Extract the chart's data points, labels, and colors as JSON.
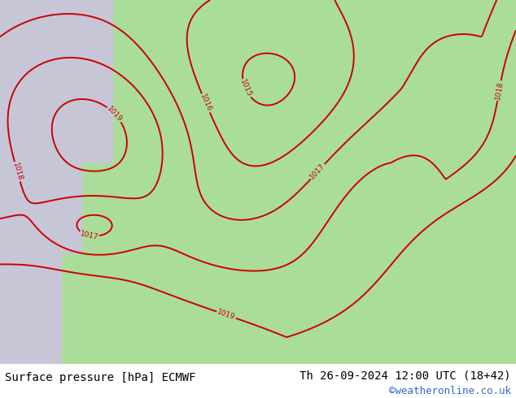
{
  "title_left": "Surface pressure [hPa] ECMWF",
  "title_right": "Th 26-09-2024 12:00 UTC (18+42)",
  "credit": "©weatheronline.co.uk",
  "bg_color": "#ffffff",
  "land_color_rgb": [
    0.67,
    0.87,
    0.6
  ],
  "sea_color_rgb": [
    0.78,
    0.78,
    0.84
  ],
  "footer_bg": "#e8e8e8",
  "blue_contour_color": "#2222bb",
  "red_contour_color": "#cc0000",
  "black_contour_color": "#000000",
  "figsize": [
    6.34,
    4.9
  ],
  "dpi": 100,
  "blue_levels": [
    996,
    997,
    998,
    999,
    1000,
    1001,
    1002,
    1003,
    1004,
    1005,
    1006,
    1007,
    1008,
    1009,
    1010,
    1011,
    1012
  ],
  "red_levels": [
    1014,
    1015,
    1016,
    1017,
    1018,
    1019
  ],
  "black_levels": [
    1013
  ]
}
